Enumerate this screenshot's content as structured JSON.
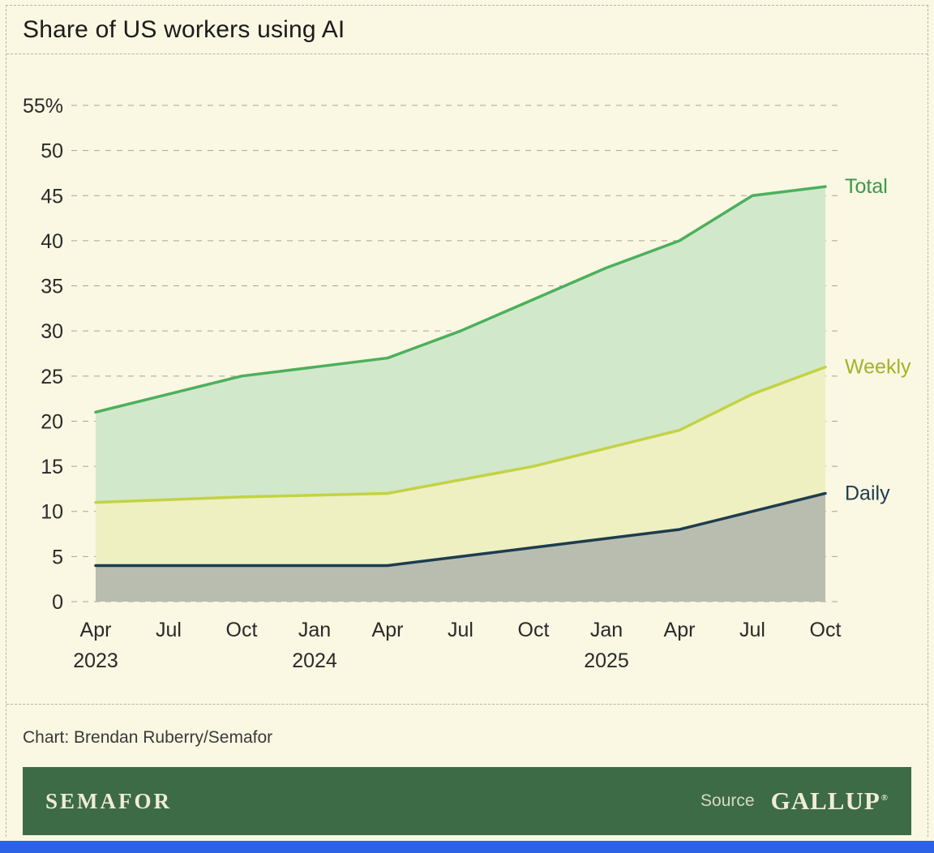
{
  "title": "Share of US workers using AI",
  "credit": "Chart: Brendan Ruberry/Semafor",
  "footer": {
    "brand": "SEMAFOR",
    "source_label": "Source",
    "source_name": "GALLUP",
    "registered_mark": "®"
  },
  "colors": {
    "background": "#faf7e2",
    "dashed_border": "#b7b7a3",
    "grid": "#a6a697",
    "text": "#2a2a2a",
    "footer_bg": "#3c6b46",
    "footer_text": "#f1ecd4",
    "bottom_strip": "#2c63e6"
  },
  "chart_data": {
    "type": "area",
    "title": "Share of US workers using AI",
    "x_labels": [
      "Apr",
      "Jul",
      "Oct",
      "Jan",
      "Apr",
      "Jul",
      "Oct",
      "Jan",
      "Apr",
      "Jul",
      "Oct"
    ],
    "year_labels": [
      {
        "label": "2023",
        "index": 0
      },
      {
        "label": "2024",
        "index": 3
      },
      {
        "label": "2025",
        "index": 7
      }
    ],
    "ylim": [
      0,
      55
    ],
    "ytick_step": 5,
    "ytick_top_label": "55%",
    "grid": true,
    "legend_position": "right-edge-labels",
    "series": [
      {
        "name": "Total",
        "color": "#4cb05c",
        "fill": "#d2e8cb",
        "label_color": "#379a4a",
        "values": [
          21,
          23,
          25,
          26,
          27,
          30,
          33.5,
          37,
          40,
          45,
          46
        ]
      },
      {
        "name": "Weekly",
        "color": "#c3d244",
        "fill": "#eef0c2",
        "label_color": "#a4b228",
        "values": [
          11,
          11.3,
          11.6,
          11.8,
          12,
          13.5,
          15,
          17,
          19,
          23,
          26
        ]
      },
      {
        "name": "Daily",
        "color": "#1d3d4e",
        "fill": "#b9bdb0",
        "label_color": "#1d3d4e",
        "values": [
          4,
          4,
          4,
          4,
          4,
          5,
          6,
          7,
          8,
          10,
          12
        ]
      }
    ]
  }
}
